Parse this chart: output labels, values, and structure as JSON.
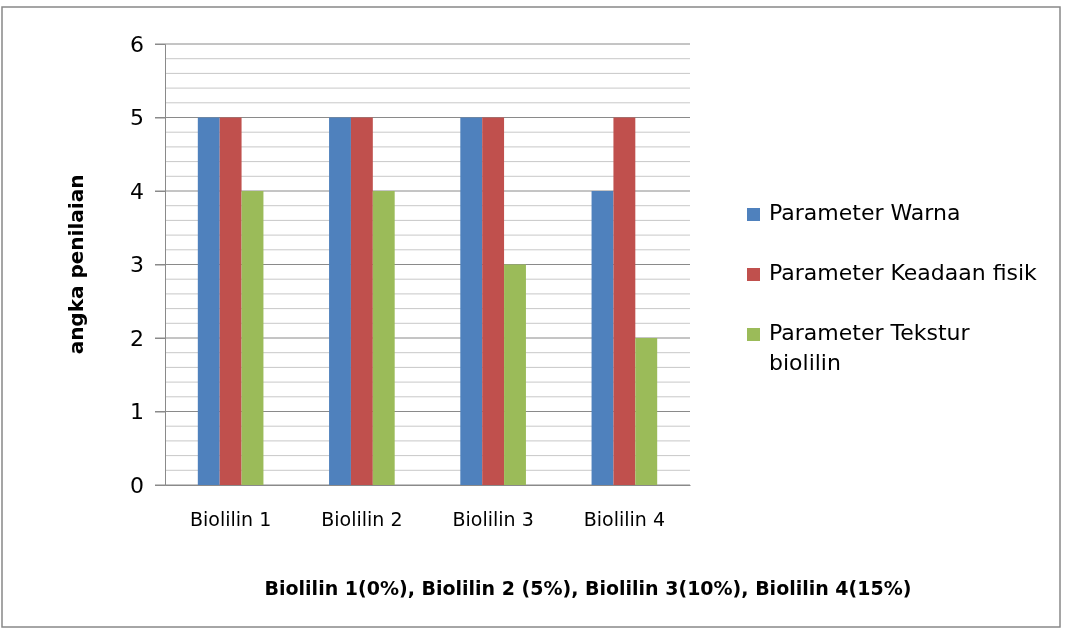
{
  "chart_data": {
    "type": "bar",
    "xlabel": "Biolilin 1(0%), Biolilin 2 (5%), Biolilin 3(10%), Biolilin 4(15%)",
    "ylabel": "angka penilaian",
    "categories": [
      "Biolilin 1",
      "Biolilin 2",
      "Biolilin 3",
      "Biolilin 4"
    ],
    "series": [
      {
        "name": "Parameter Warna",
        "color": "#4f81bd",
        "values": [
          5,
          5,
          5,
          4
        ]
      },
      {
        "name": "Parameter Keadaan fisik",
        "color": "#c0504d",
        "values": [
          5,
          5,
          5,
          5
        ]
      },
      {
        "name": "Parameter Tekstur biolilin",
        "color": "#9bbb59",
        "values": [
          4,
          4,
          3,
          2
        ]
      }
    ],
    "ylim": [
      0,
      6
    ],
    "yticks": [
      0,
      1,
      2,
      3,
      4,
      5,
      6
    ],
    "grid": true,
    "legend": "right"
  }
}
